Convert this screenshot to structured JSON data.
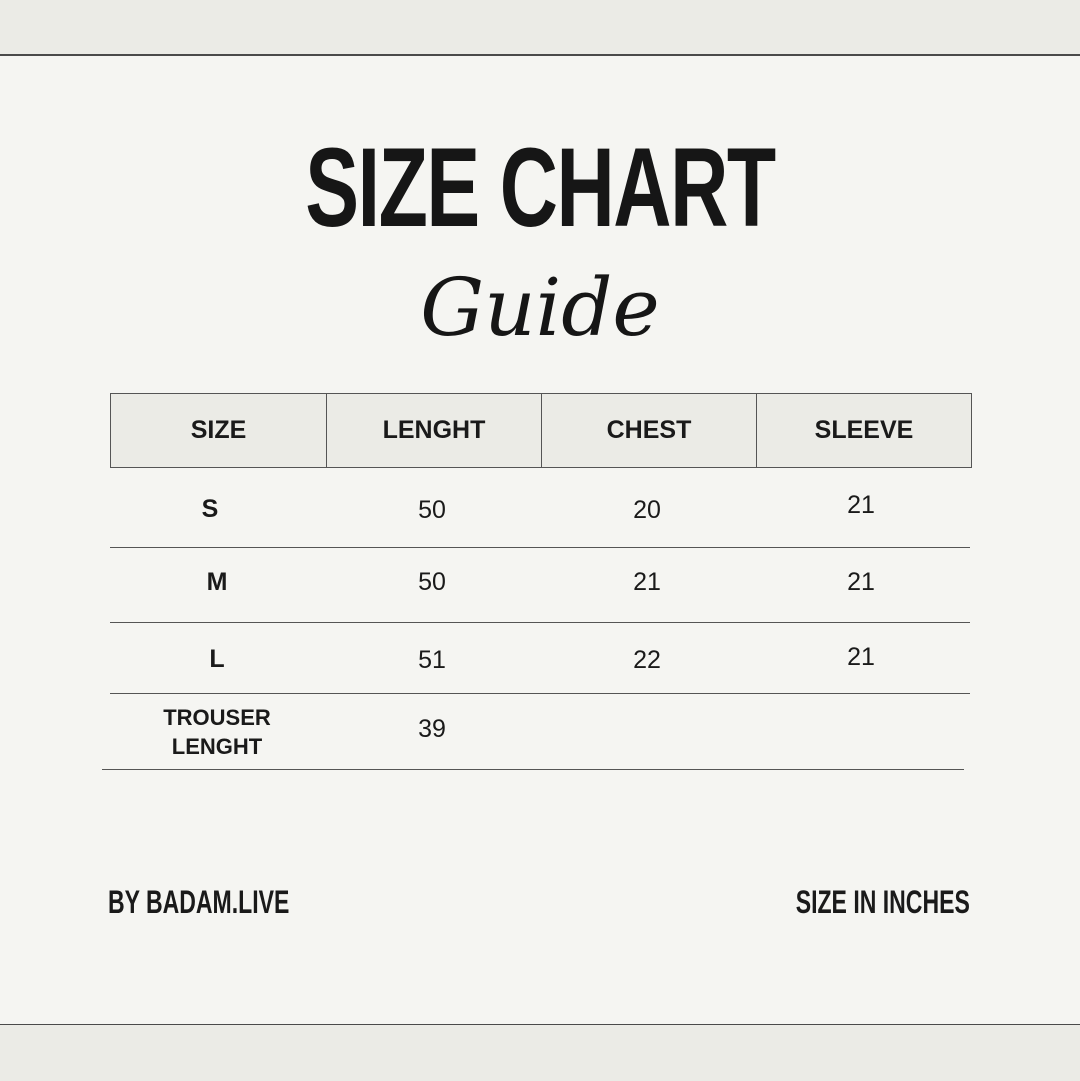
{
  "title": "SIZE CHART",
  "subtitle": "Guide",
  "table": {
    "headers": [
      "SIZE",
      "LENGHT",
      "CHEST",
      "SLEEVE"
    ],
    "rows": [
      [
        "S",
        "50",
        "20",
        "21"
      ],
      [
        "M",
        "50",
        "21",
        "21"
      ],
      [
        "L",
        "51",
        "22",
        "21"
      ],
      [
        "TROUSER LENGHT",
        "39",
        "",
        ""
      ]
    ],
    "trouser_label_line1": "TROUSER",
    "trouser_label_line2": "LENGHT"
  },
  "footer": {
    "brand": "BY BADAM.LIVE",
    "unit_note": "SIZE IN INCHES"
  },
  "colors": {
    "background": "#f5f5f2",
    "header_fill": "#ebebe6",
    "text": "#1a1a1a"
  }
}
